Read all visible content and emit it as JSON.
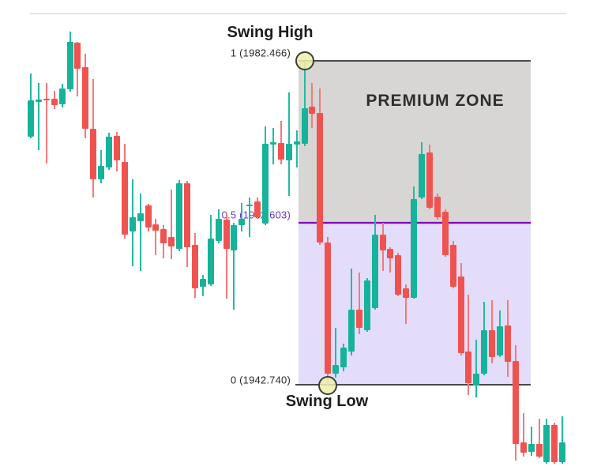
{
  "labels": {
    "swing_high": "Swing High",
    "swing_low": "Swing Low",
    "premium_zone": "PREMIUM ZONE"
  },
  "levels": {
    "one": {
      "label": "1 (1982.466)",
      "ratio": 1,
      "price": 1982.466
    },
    "half": {
      "label": "0.5 (1962.603)",
      "ratio": 0.5,
      "price": 1962.603
    },
    "zero": {
      "label": "0 (1942.740)",
      "ratio": 0,
      "price": 1942.74
    }
  },
  "colors": {
    "bull_body": "#17b29a",
    "bull_wick": "#25bba1",
    "bear_body": "#ef5350",
    "bear_wick": "#f4797c",
    "premium_zone_fill": "#d7d6d4",
    "discount_zone_fill": "#e3ddfa",
    "swing_line": "#4a4a4a",
    "mid_line": "#8600c2",
    "mid_label": "#6535c8",
    "level_label": "#2a2a2a",
    "marker_fill": "rgba(238,240,168,0.85)",
    "marker_border": "#3c3c3c",
    "top_guide_line": "#cfcfcf"
  },
  "chart_data": {
    "type": "candlestick",
    "title": "",
    "price_axis_visible": false,
    "time_axis_visible": false,
    "grid": false,
    "fib_retracement": {
      "tool": "premium-discount-zones",
      "swing_high_price": 1982.466,
      "swing_low_price": 1942.74,
      "levels": [
        {
          "ratio": 1,
          "price": 1982.466,
          "label": "1 (1982.466)"
        },
        {
          "ratio": 0.5,
          "price": 1962.603,
          "label": "0.5 (1962.603)"
        },
        {
          "ratio": 0,
          "price": 1942.74,
          "label": "0 (1942.740)"
        }
      ],
      "zones": [
        {
          "name": "PREMIUM ZONE",
          "from_ratio": 1,
          "to_ratio": 0.5
        },
        {
          "name": "discount zone (unlabeled)",
          "from_ratio": 0.5,
          "to_ratio": 0
        }
      ]
    },
    "candles_format": [
      "open",
      "high",
      "low",
      "close"
    ],
    "candles": [
      [
        1973.16,
        1980.92,
        1972.97,
        1977.62
      ],
      [
        1977.43,
        1979.75,
        1971.52,
        1977.72
      ],
      [
        1977.82,
        1979.75,
        1969.87,
        1977.72
      ],
      [
        1977.82,
        1978.78,
        1976.56,
        1977.04
      ],
      [
        1977.14,
        1979.66,
        1976.75,
        1979.07
      ],
      [
        1978.98,
        1986.05,
        1978.69,
        1984.79
      ],
      [
        1984.69,
        1984.79,
        1978.11,
        1981.5
      ],
      [
        1981.69,
        1983.34,
        1972.97,
        1974.13
      ],
      [
        1974.13,
        1980.24,
        1965.7,
        1967.93
      ],
      [
        1967.93,
        1971.52,
        1967.45,
        1969.58
      ],
      [
        1969.38,
        1973.65,
        1969.09,
        1973.16
      ],
      [
        1973.26,
        1973.74,
        1968.9,
        1970.26
      ],
      [
        1970.06,
        1972.29,
        1960.67,
        1961.15
      ],
      [
        1961.54,
        1967.93,
        1957.28,
        1963.28
      ],
      [
        1962.8,
        1966.19,
        1956.7,
        1963.76
      ],
      [
        1964.73,
        1964.93,
        1961.54,
        1962.02
      ],
      [
        1962.41,
        1963.08,
        1958.63,
        1961.63
      ],
      [
        1961.83,
        1962.31,
        1958.24,
        1960.09
      ],
      [
        1960.86,
        1966.67,
        1958.15,
        1959.7
      ],
      [
        1959.41,
        1967.83,
        1959.12,
        1967.45
      ],
      [
        1967.45,
        1967.74,
        1957.18,
        1959.6
      ],
      [
        1959.89,
        1961.34,
        1953.4,
        1954.56
      ],
      [
        1954.76,
        1956.21,
        1953.59,
        1955.73
      ],
      [
        1955.05,
        1963.57,
        1954.85,
        1960.67
      ],
      [
        1960.38,
        1964.25,
        1960.09,
        1963.08
      ],
      [
        1962.99,
        1963.76,
        1953.3,
        1959.41
      ],
      [
        1959.21,
        1962.6,
        1951.94,
        1962.31
      ],
      [
        1962.31,
        1965.02,
        1961.54,
        1963.08
      ],
      [
        1964.64,
        1965.7,
        1960.86,
        1964.83
      ],
      [
        1965.22,
        1965.7,
        1963.08,
        1963.28
      ],
      [
        1962.51,
        1974.42,
        1962.31,
        1972.29
      ],
      [
        1972.2,
        1974.23,
        1969.77,
        1972.49
      ],
      [
        1972.39,
        1975.1,
        1969.77,
        1970.35
      ],
      [
        1970.26,
        1978.59,
        1965.9,
        1972.29
      ],
      [
        1972.2,
        1973.94,
        1969.38,
        1972.58
      ],
      [
        1972.29,
        1982.47,
        1972.0,
        1976.65
      ],
      [
        1976.85,
        1979.75,
        1974.23,
        1975.97
      ],
      [
        1976.07,
        1979.07,
        1959.89,
        1960.18
      ],
      [
        1960.18,
        1960.86,
        1942.74,
        1944.1
      ],
      [
        1944.1,
        1949.72,
        1943.61,
        1945.16
      ],
      [
        1944.87,
        1947.78,
        1944.39,
        1947.29
      ],
      [
        1946.81,
        1956.99,
        1946.33,
        1951.94
      ],
      [
        1951.94,
        1956.5,
        1948.94,
        1949.72
      ],
      [
        1949.43,
        1955.82,
        1949.23,
        1955.53
      ],
      [
        1952.14,
        1963.57,
        1951.94,
        1961.15
      ],
      [
        1961.15,
        1962.6,
        1956.7,
        1959.21
      ],
      [
        1959.41,
        1959.6,
        1956.5,
        1958.24
      ],
      [
        1958.63,
        1958.92,
        1953.59,
        1953.79
      ],
      [
        1954.56,
        1955.05,
        1950.2,
        1953.4
      ],
      [
        1953.4,
        1967.06,
        1953.3,
        1965.51
      ],
      [
        1965.7,
        1972.49,
        1965.51,
        1971.03
      ],
      [
        1971.23,
        1972.2,
        1964.25,
        1964.44
      ],
      [
        1965.8,
        1966.19,
        1962.99,
        1963.28
      ],
      [
        1963.96,
        1964.25,
        1958.44,
        1958.63
      ],
      [
        1959.89,
        1960.38,
        1954.56,
        1954.76
      ],
      [
        1956.02,
        1957.66,
        1946.33,
        1946.62
      ],
      [
        1946.81,
        1953.79,
        1941.48,
        1942.93
      ],
      [
        1942.64,
        1948.26,
        1941.19,
        1944.1
      ],
      [
        1944.1,
        1952.91,
        1943.9,
        1949.43
      ],
      [
        1949.43,
        1953.11,
        1945.36,
        1946.13
      ],
      [
        1946.33,
        1951.85,
        1946.13,
        1949.91
      ],
      [
        1950.01,
        1953.11,
        1943.71,
        1945.55
      ],
      [
        1945.65,
        1947.58,
        1933.43,
        1935.47
      ],
      [
        1935.67,
        1939.25,
        1933.92,
        1934.4
      ],
      [
        1934.5,
        1937.6,
        1934.01,
        1935.47
      ],
      [
        1935.47,
        1938.57,
        1933.72,
        1933.92
      ],
      [
        1933.24,
        1938.57,
        1933.04,
        1937.8
      ],
      [
        1937.8,
        1938.09,
        1933.04,
        1933.24
      ],
      [
        1933.24,
        1938.86,
        1933.04,
        1935.67
      ]
    ]
  }
}
